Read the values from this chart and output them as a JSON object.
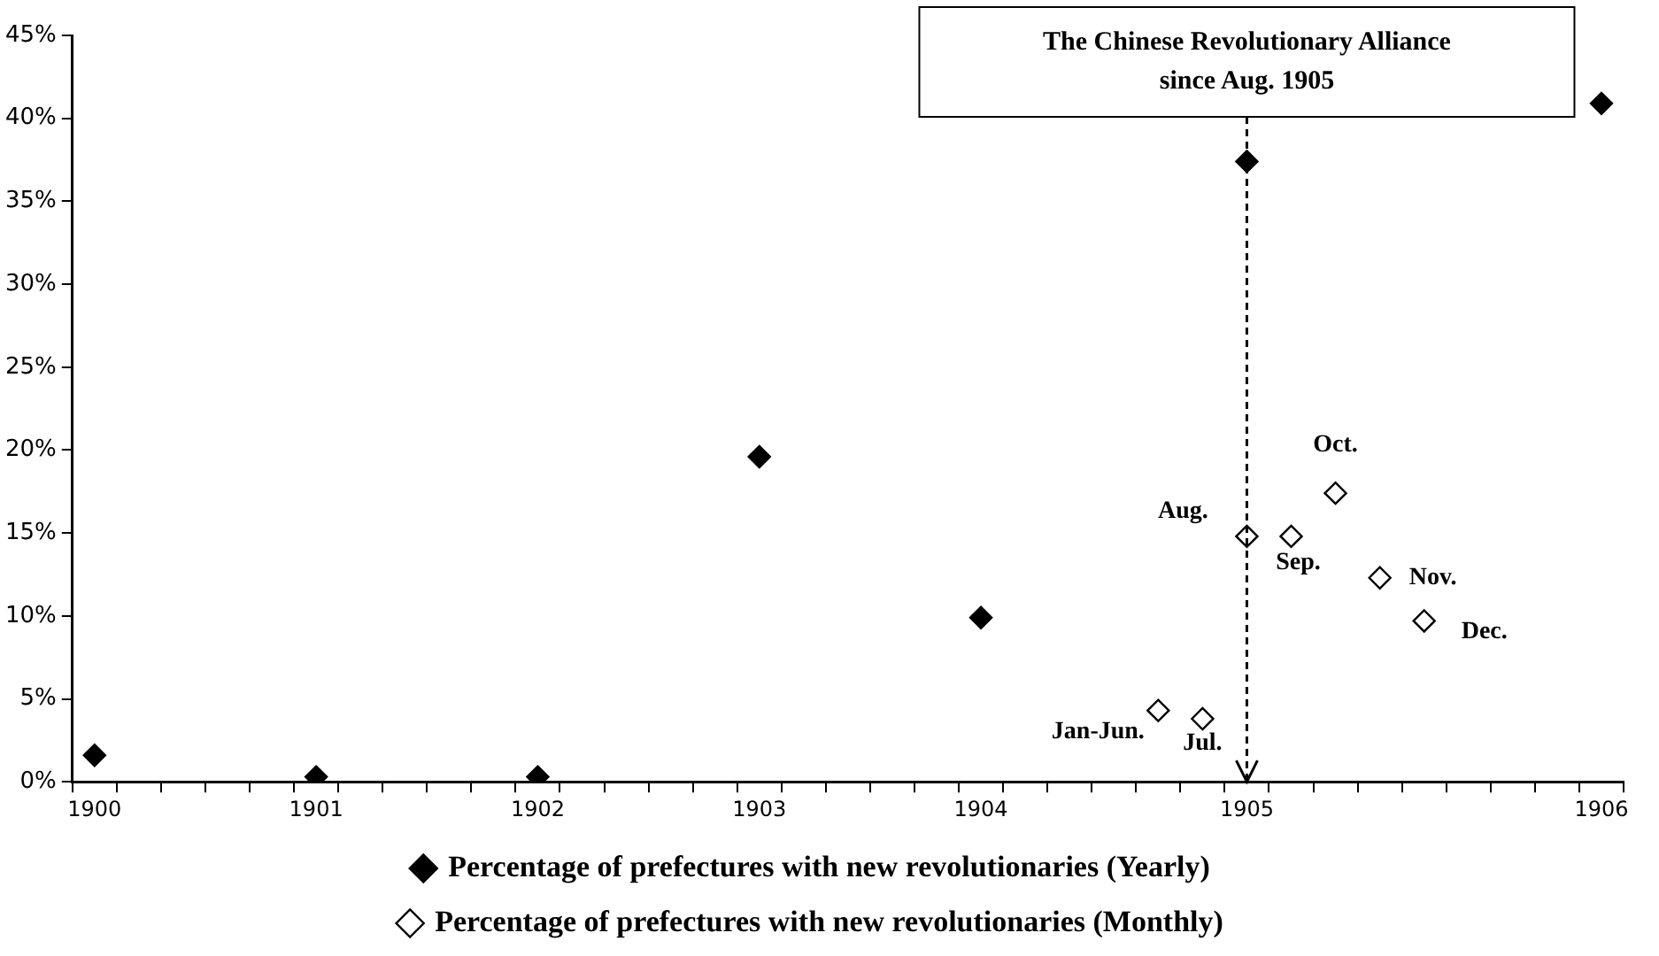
{
  "chart_data": {
    "type": "scatter",
    "categories": [
      "1900",
      null,
      null,
      null,
      null,
      "1901",
      null,
      null,
      null,
      null,
      "1902",
      null,
      null,
      null,
      null,
      "1903",
      null,
      null,
      null,
      null,
      "1904",
      null,
      null,
      null,
      null,
      null,
      "1905",
      null,
      null,
      null,
      null,
      null,
      null,
      null,
      "1906"
    ],
    "series": [
      {
        "name": "Percentage of prefectures with new revolutionaries (Yearly)",
        "color": "#000000",
        "values": [
          1.6,
          null,
          null,
          null,
          null,
          0.3,
          null,
          null,
          null,
          null,
          0.3,
          null,
          null,
          null,
          null,
          19.6,
          null,
          null,
          null,
          null,
          9.9,
          null,
          null,
          null,
          null,
          null,
          37.4,
          null,
          null,
          null,
          null,
          null,
          null,
          null,
          40.9
        ]
      },
      {
        "name": "Percentage of prefectures with new revolutionaries (Monthly)",
        "color": "#000000",
        "values": [
          null,
          null,
          null,
          null,
          null,
          null,
          null,
          null,
          null,
          null,
          null,
          null,
          null,
          null,
          null,
          null,
          null,
          null,
          null,
          null,
          null,
          null,
          null,
          null,
          4.3,
          3.8,
          14.8,
          14.8,
          17.4,
          12.3,
          9.7,
          null,
          null,
          null,
          null
        ],
        "value_labels": [
          null,
          null,
          null,
          null,
          null,
          null,
          null,
          null,
          null,
          null,
          null,
          null,
          null,
          null,
          null,
          null,
          null,
          null,
          null,
          null,
          null,
          null,
          null,
          null,
          "Jan-Jun.",
          "Jul.",
          "Aug.",
          "Sep.",
          "Oct.",
          "Nov.",
          "Dec.",
          null,
          null,
          null,
          null
        ]
      }
    ],
    "ylim": [
      0,
      45
    ],
    "yticks": [
      {
        "value": 0,
        "label": "0%"
      },
      {
        "value": 5,
        "label": "5%"
      },
      {
        "value": 10,
        "label": "10%"
      },
      {
        "value": 15,
        "label": "15%"
      },
      {
        "value": 20,
        "label": "20%"
      },
      {
        "value": 25,
        "label": "25%"
      },
      {
        "value": 30,
        "label": "30%"
      },
      {
        "value": 35,
        "label": "35%"
      },
      {
        "value": 40,
        "label": "40%"
      },
      {
        "value": 45,
        "label": "45%"
      }
    ],
    "ref_lines": [
      {
        "axis": "x",
        "value": "1905",
        "label": "The Chinese Revolutionary Alliance since Aug. 1905",
        "line_style": "dashed"
      }
    ],
    "marker": "diamond",
    "grid": false,
    "legend": "bottom"
  }
}
